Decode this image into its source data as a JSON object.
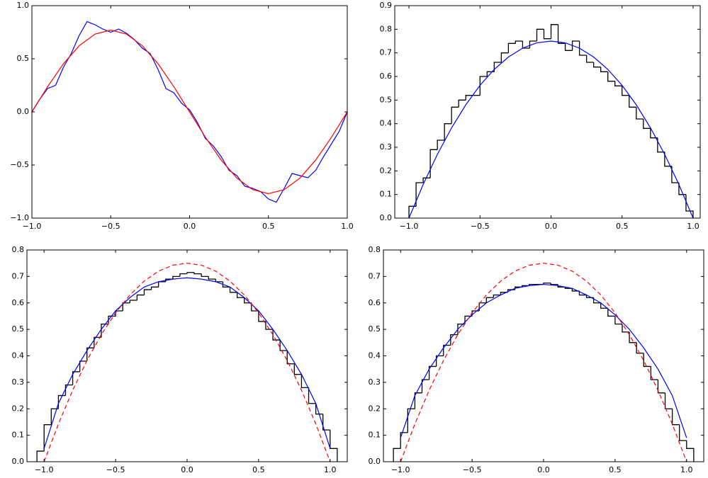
{
  "chart_data": [
    {
      "type": "line",
      "xlim": [
        -1,
        1
      ],
      "ylim": [
        -1,
        1
      ],
      "xticks": [
        {
          "value": -1,
          "label": "−1.0"
        },
        {
          "value": -0.5,
          "label": "−0.5"
        },
        {
          "value": 0,
          "label": "0.0"
        },
        {
          "value": 0.5,
          "label": "0.5"
        },
        {
          "value": 1,
          "label": "1.0"
        }
      ],
      "yticks": [
        {
          "value": -1,
          "label": "−1.0"
        },
        {
          "value": -0.5,
          "label": "−0.5"
        },
        {
          "value": 0,
          "label": "0.0"
        },
        {
          "value": 0.5,
          "label": "0.5"
        },
        {
          "value": 1,
          "label": "1.0"
        }
      ],
      "series": [
        {
          "color": "#0000ff",
          "x": [
            -1,
            -0.95,
            -0.9,
            -0.85,
            -0.8,
            -0.75,
            -0.7,
            -0.65,
            -0.6,
            -0.55,
            -0.5,
            -0.45,
            -0.4,
            -0.35,
            -0.3,
            -0.25,
            -0.2,
            -0.15,
            -0.1,
            -0.05,
            0,
            0.05,
            0.1,
            0.15,
            0.2,
            0.25,
            0.3,
            0.35,
            0.4,
            0.45,
            0.5,
            0.55,
            0.6,
            0.65,
            0.7,
            0.75,
            0.8,
            0.85,
            0.9,
            0.95,
            1
          ],
          "values": [
            0,
            0.12,
            0.22,
            0.25,
            0.42,
            0.55,
            0.72,
            0.85,
            0.82,
            0.78,
            0.75,
            0.78,
            0.74,
            0.68,
            0.6,
            0.55,
            0.4,
            0.22,
            0.18,
            0.08,
            0.02,
            -0.1,
            -0.25,
            -0.32,
            -0.42,
            -0.55,
            -0.6,
            -0.7,
            -0.72,
            -0.75,
            -0.82,
            -0.85,
            -0.72,
            -0.58,
            -0.6,
            -0.62,
            -0.55,
            -0.42,
            -0.3,
            -0.18,
            0
          ]
        },
        {
          "color": "#ff0000",
          "x": [
            -1,
            -0.9,
            -0.8,
            -0.7,
            -0.6,
            -0.5,
            -0.4,
            -0.3,
            -0.2,
            -0.1,
            0,
            0.1,
            0.2,
            0.3,
            0.4,
            0.5,
            0.6,
            0.7,
            0.8,
            0.9,
            1
          ],
          "values": [
            0,
            0.238,
            0.453,
            0.623,
            0.732,
            0.77,
            0.732,
            0.623,
            0.453,
            0.238,
            0,
            -0.238,
            -0.453,
            -0.623,
            -0.732,
            -0.77,
            -0.732,
            -0.623,
            -0.453,
            -0.238,
            0
          ]
        }
      ]
    },
    {
      "type": "histogram",
      "color": "#000000",
      "xlim": [
        -1.1,
        1.05
      ],
      "ylim": [
        0,
        0.9
      ],
      "xticks": [
        {
          "value": -1,
          "label": "−1.0"
        },
        {
          "value": -0.5,
          "label": "−0.5"
        },
        {
          "value": 0,
          "label": "0.0"
        },
        {
          "value": 0.5,
          "label": "0.5"
        },
        {
          "value": 1,
          "label": "1.0"
        }
      ],
      "yticks": [
        {
          "value": 0,
          "label": "0.0"
        },
        0.1,
        0.2,
        0.3,
        0.4,
        0.5,
        0.6,
        0.7,
        0.8,
        0.9
      ],
      "bins": [
        -1,
        -0.95,
        -0.9,
        -0.85,
        -0.8,
        -0.75,
        -0.7,
        -0.65,
        -0.6,
        -0.55,
        -0.5,
        -0.45,
        -0.4,
        -0.35,
        -0.3,
        -0.25,
        -0.2,
        -0.15,
        -0.1,
        -0.05,
        0,
        0.05,
        0.1,
        0.15,
        0.2,
        0.25,
        0.3,
        0.35,
        0.4,
        0.45,
        0.5,
        0.55,
        0.6,
        0.65,
        0.7,
        0.75,
        0.8,
        0.85,
        0.9,
        0.95,
        1
      ],
      "values": [
        0.05,
        0.15,
        0.17,
        0.29,
        0.33,
        0.4,
        0.47,
        0.5,
        0.52,
        0.52,
        0.6,
        0.62,
        0.66,
        0.7,
        0.74,
        0.75,
        0.72,
        0.75,
        0.8,
        0.76,
        0.82,
        0.74,
        0.71,
        0.75,
        0.69,
        0.66,
        0.64,
        0.62,
        0.58,
        0.56,
        0.52,
        0.47,
        0.42,
        0.38,
        0.34,
        0.28,
        0.22,
        0.15,
        0.1,
        0.03
      ],
      "series": [
        {
          "color": "#0000ff",
          "x": [
            -1,
            -0.9,
            -0.8,
            -0.7,
            -0.6,
            -0.5,
            -0.4,
            -0.3,
            -0.2,
            -0.1,
            0,
            0.1,
            0.2,
            0.3,
            0.4,
            0.5,
            0.6,
            0.7,
            0.8,
            0.9,
            1
          ],
          "values": [
            0,
            0.1425,
            0.27,
            0.3825,
            0.48,
            0.5625,
            0.63,
            0.6825,
            0.72,
            0.7425,
            0.75,
            0.7425,
            0.72,
            0.6825,
            0.63,
            0.5625,
            0.48,
            0.3825,
            0.27,
            0.1425,
            0
          ]
        }
      ]
    },
    {
      "type": "histogram",
      "color": "#000000",
      "xlim": [
        -1.12,
        1.12
      ],
      "ylim": [
        0,
        0.8
      ],
      "xticks": [
        {
          "value": -1,
          "label": "−1.0"
        },
        {
          "value": -0.5,
          "label": "−0.5"
        },
        {
          "value": 0,
          "label": "0.0"
        },
        {
          "value": 0.5,
          "label": "0.5"
        },
        {
          "value": 1,
          "label": "1.0"
        }
      ],
      "yticks": [
        {
          "value": 0,
          "label": "0.0"
        },
        0.1,
        0.2,
        0.3,
        0.4,
        0.5,
        0.6,
        0.7,
        0.8
      ],
      "bins": [
        -1.05,
        -1,
        -0.95,
        -0.9,
        -0.85,
        -0.8,
        -0.75,
        -0.7,
        -0.65,
        -0.6,
        -0.55,
        -0.5,
        -0.45,
        -0.4,
        -0.35,
        -0.3,
        -0.25,
        -0.2,
        -0.15,
        -0.1,
        -0.05,
        0,
        0.05,
        0.1,
        0.15,
        0.2,
        0.25,
        0.3,
        0.35,
        0.4,
        0.45,
        0.5,
        0.55,
        0.6,
        0.65,
        0.7,
        0.75,
        0.8,
        0.85,
        0.9,
        0.95,
        1,
        1.05
      ],
      "values": [
        0.04,
        0.14,
        0.2,
        0.25,
        0.29,
        0.34,
        0.38,
        0.43,
        0.47,
        0.52,
        0.55,
        0.57,
        0.6,
        0.61,
        0.63,
        0.65,
        0.66,
        0.68,
        0.69,
        0.7,
        0.71,
        0.715,
        0.71,
        0.7,
        0.69,
        0.68,
        0.66,
        0.64,
        0.62,
        0.6,
        0.57,
        0.53,
        0.5,
        0.46,
        0.42,
        0.37,
        0.33,
        0.28,
        0.22,
        0.18,
        0.12,
        0.05
      ],
      "series": [
        {
          "color": "#0000ff",
          "x": [
            -1,
            -0.9,
            -0.8,
            -0.7,
            -0.6,
            -0.5,
            -0.4,
            -0.3,
            -0.2,
            -0.1,
            0,
            0.1,
            0.2,
            0.3,
            0.4,
            0.5,
            0.6,
            0.7,
            0.8,
            0.9,
            1
          ],
          "values": [
            0.05,
            0.22,
            0.33,
            0.42,
            0.5,
            0.57,
            0.62,
            0.66,
            0.68,
            0.69,
            0.695,
            0.69,
            0.68,
            0.66,
            0.62,
            0.57,
            0.5,
            0.42,
            0.33,
            0.22,
            0.05
          ]
        },
        {
          "color": "#ff0000",
          "dash": true,
          "x": [
            -1,
            -0.9,
            -0.8,
            -0.7,
            -0.6,
            -0.5,
            -0.4,
            -0.3,
            -0.2,
            -0.1,
            0,
            0.1,
            0.2,
            0.3,
            0.4,
            0.5,
            0.6,
            0.7,
            0.8,
            0.9,
            1
          ],
          "values": [
            0,
            0.1425,
            0.27,
            0.3825,
            0.48,
            0.5625,
            0.63,
            0.6825,
            0.72,
            0.7425,
            0.75,
            0.7425,
            0.72,
            0.6825,
            0.63,
            0.5625,
            0.48,
            0.3825,
            0.27,
            0.1425,
            0
          ]
        }
      ]
    },
    {
      "type": "histogram",
      "color": "#000000",
      "xlim": [
        -1.12,
        1.12
      ],
      "ylim": [
        0,
        0.8
      ],
      "xticks": [
        {
          "value": -1,
          "label": "−1.0"
        },
        {
          "value": -0.5,
          "label": "−0.5"
        },
        {
          "value": 0,
          "label": "0.0"
        },
        {
          "value": 0.5,
          "label": "0.5"
        },
        {
          "value": 1,
          "label": "1.0"
        }
      ],
      "yticks": [
        {
          "value": 0,
          "label": "0.0"
        },
        0.1,
        0.2,
        0.3,
        0.4,
        0.5,
        0.6,
        0.7,
        0.8
      ],
      "bins": [
        -1.05,
        -1,
        -0.95,
        -0.9,
        -0.85,
        -0.8,
        -0.75,
        -0.7,
        -0.65,
        -0.6,
        -0.55,
        -0.5,
        -0.45,
        -0.4,
        -0.35,
        -0.3,
        -0.25,
        -0.2,
        -0.15,
        -0.1,
        -0.05,
        0,
        0.05,
        0.1,
        0.15,
        0.2,
        0.25,
        0.3,
        0.35,
        0.4,
        0.45,
        0.5,
        0.55,
        0.6,
        0.65,
        0.7,
        0.75,
        0.8,
        0.85,
        0.9,
        0.95,
        1,
        1.05
      ],
      "values": [
        0.05,
        0.11,
        0.2,
        0.26,
        0.31,
        0.36,
        0.4,
        0.44,
        0.48,
        0.52,
        0.55,
        0.57,
        0.6,
        0.62,
        0.63,
        0.64,
        0.65,
        0.66,
        0.665,
        0.67,
        0.67,
        0.675,
        0.67,
        0.66,
        0.655,
        0.645,
        0.63,
        0.62,
        0.6,
        0.58,
        0.55,
        0.52,
        0.49,
        0.45,
        0.41,
        0.36,
        0.31,
        0.26,
        0.2,
        0.14,
        0.08,
        0.05
      ],
      "series": [
        {
          "color": "#0000ff",
          "x": [
            -1,
            -0.9,
            -0.8,
            -0.7,
            -0.6,
            -0.5,
            -0.4,
            -0.3,
            -0.2,
            -0.1,
            0,
            0.1,
            0.2,
            0.3,
            0.4,
            0.5,
            0.6,
            0.7,
            0.8,
            0.9,
            1
          ],
          "values": [
            0.09,
            0.25,
            0.35,
            0.43,
            0.5,
            0.555,
            0.6,
            0.63,
            0.655,
            0.665,
            0.67,
            0.665,
            0.655,
            0.63,
            0.6,
            0.555,
            0.5,
            0.43,
            0.35,
            0.25,
            0.09
          ]
        },
        {
          "color": "#ff0000",
          "dash": true,
          "x": [
            -1,
            -0.9,
            -0.8,
            -0.7,
            -0.6,
            -0.5,
            -0.4,
            -0.3,
            -0.2,
            -0.1,
            0,
            0.1,
            0.2,
            0.3,
            0.4,
            0.5,
            0.6,
            0.7,
            0.8,
            0.9,
            1
          ],
          "values": [
            0,
            0.1425,
            0.27,
            0.3825,
            0.48,
            0.5625,
            0.63,
            0.6825,
            0.72,
            0.7425,
            0.75,
            0.7425,
            0.72,
            0.6825,
            0.63,
            0.5625,
            0.48,
            0.3825,
            0.27,
            0.1425,
            0
          ]
        }
      ]
    }
  ]
}
